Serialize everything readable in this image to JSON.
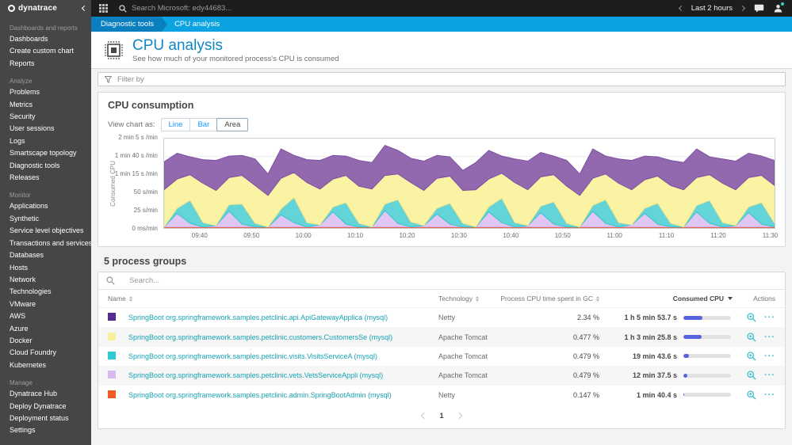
{
  "topbar": {
    "logo_text": "dynatrace",
    "search_placeholder": "Search Microsoft: edy44683...",
    "time_selector": "Last 2 hours"
  },
  "sidebar": {
    "active_item": "Diagnostic tools",
    "sections": [
      {
        "header": "Dashboards and reports",
        "items": [
          "Dashboards",
          "Create custom chart",
          "Reports"
        ]
      },
      {
        "header": "Analyze",
        "items": [
          "Problems",
          "Metrics",
          "Security",
          "User sessions",
          "Logs",
          "Smartscape topology",
          "Diagnostic tools",
          "Releases"
        ]
      },
      {
        "header": "Monitor",
        "items": [
          "Applications",
          "Synthetic",
          "Service level objectives",
          "Transactions and services",
          "Databases",
          "Hosts",
          "Network",
          "Technologies",
          "VMware",
          "AWS",
          "Azure",
          "Docker",
          "Cloud Foundry",
          "Kubernetes"
        ]
      },
      {
        "header": "Manage",
        "items": [
          "Dynatrace Hub",
          "Deploy Dynatrace",
          "Deployment status",
          "Settings"
        ]
      }
    ]
  },
  "breadcrumb": {
    "parent": "Diagnostic tools",
    "current": "CPU analysis"
  },
  "header": {
    "title": "CPU analysis",
    "subtitle": "See how much of your monitored process's CPU is consumed"
  },
  "filter": {
    "placeholder": "Filter by"
  },
  "chart_section": {
    "title": "CPU consumption",
    "view_label": "View chart as:",
    "view_options": [
      "Line",
      "Bar",
      "Area"
    ],
    "selected_view": "Area"
  },
  "chart_data": {
    "type": "area",
    "stacked": true,
    "title": "CPU consumption",
    "ylabel": "Consumed CPU",
    "unit": "s/min",
    "ylim": [
      0,
      125
    ],
    "grid": true,
    "y_ticks": [
      {
        "v": 0,
        "label": "0 ms/min"
      },
      {
        "v": 25,
        "label": "25 s/min"
      },
      {
        "v": 50,
        "label": "50 s/min"
      },
      {
        "v": 75,
        "label": "1 min 15 s /min"
      },
      {
        "v": 100,
        "label": "1 min 40 s /min"
      },
      {
        "v": 125,
        "label": "2 min 5 s /min"
      }
    ],
    "x_total_minutes": 118,
    "x_start": "09:33",
    "x_end": "11:31",
    "x_ticks": [
      {
        "m": 7,
        "label": "09:40"
      },
      {
        "m": 17,
        "label": "09:50"
      },
      {
        "m": 27,
        "label": "10:00"
      },
      {
        "m": 37,
        "label": "10:10"
      },
      {
        "m": 47,
        "label": "10:20"
      },
      {
        "m": 57,
        "label": "10:30"
      },
      {
        "m": 67,
        "label": "10:40"
      },
      {
        "m": 77,
        "label": "10:50"
      },
      {
        "m": 87,
        "label": "11:00"
      },
      {
        "m": 97,
        "label": "11:10"
      },
      {
        "m": 107,
        "label": "11:20"
      },
      {
        "m": 117,
        "label": "11:30"
      }
    ],
    "series": [
      {
        "id": "admin-springbootadmin",
        "name": "SpringBoot org.springframework.samples.petclinic.admin.SpringBootAdmin (mysql)",
        "fill": "#ef6a3f",
        "stroke": "#e55a31",
        "values": [
          1.5,
          1.5,
          1.5,
          1.5,
          1.5,
          1.5,
          1.5,
          1.5,
          1.5,
          1.5,
          1.5,
          1.5,
          1.5,
          1.5,
          1.5,
          1.5,
          1.5,
          1.5,
          1.5,
          1.5,
          1.5,
          1.5,
          1.5,
          1.5,
          1.5,
          1.5,
          1.5,
          1.5,
          1.5,
          1.5,
          1.5,
          1.5,
          1.5,
          1.5,
          1.5,
          1.5,
          1.5,
          1.5,
          1.5,
          1.5,
          1.5,
          1.5,
          1.5,
          1.5,
          1.5,
          1.5,
          1.5,
          1.5
        ]
      },
      {
        "id": "vets-vetsservice",
        "name": "SpringBoot org.springframework.samples.petclinic.vets.VetsServiceAppli (mysql)",
        "fill": "#e0c6f2",
        "stroke": "#cda9e8",
        "values": [
          0,
          19,
          5,
          0,
          2,
          22,
          4,
          0,
          0,
          17,
          6,
          0,
          3,
          21,
          4,
          0,
          0,
          23,
          5,
          0,
          2,
          18,
          4,
          0,
          0,
          21,
          6,
          0,
          2,
          20,
          4,
          0,
          0,
          22,
          5,
          0,
          3,
          19,
          4,
          0,
          0,
          21,
          5,
          0,
          2,
          20,
          4,
          0
        ]
      },
      {
        "id": "visits-visitsservice",
        "name": "SpringBoot org.springframework.samples.petclinic.visits.VisitsServiceA (mysql)",
        "fill": "#63d4d8",
        "stroke": "#35c6cd",
        "values": [
          0,
          7,
          32,
          6,
          0,
          9,
          28,
          5,
          0,
          8,
          35,
          6,
          0,
          7,
          30,
          5,
          0,
          9,
          33,
          7,
          0,
          8,
          29,
          5,
          0,
          7,
          34,
          6,
          0,
          9,
          31,
          5,
          0,
          8,
          33,
          6,
          0,
          7,
          29,
          5,
          0,
          9,
          32,
          6,
          0,
          8,
          30,
          5
        ]
      },
      {
        "id": "customers-customersservice",
        "name": "SpringBoot org.springframework.samples.petclinic.customers.CustomersSe (mysql)",
        "fill": "#faf3a4",
        "stroke": "#eee28a",
        "values": [
          52,
          41,
          36,
          55,
          49,
          38,
          40,
          53,
          44,
          43,
          35,
          56,
          50,
          39,
          38,
          52,
          53,
          40,
          36,
          55,
          49,
          42,
          38,
          46,
          52,
          39,
          35,
          56,
          50,
          41,
          38,
          52,
          44,
          38,
          36,
          55,
          49,
          40,
          38,
          53,
          52,
          39,
          36,
          55,
          50,
          41,
          38,
          53
        ]
      },
      {
        "id": "api-apigateway",
        "name": "SpringBoot org.springframework.samples.petclinic.api.ApiGatewayApplica (mysql)",
        "fill": "#9268ae",
        "stroke": "#7e51a1",
        "values": [
          39,
          36,
          25,
          33,
          42,
          30,
          28,
          37,
          30,
          41,
          24,
          32,
          40,
          33,
          27,
          36,
          37,
          42,
          33,
          34,
          41,
          32,
          27,
          28,
          38,
          40,
          24,
          33,
          40,
          34,
          26,
          36,
          30,
          41,
          25,
          34,
          41,
          33,
          27,
          35,
          38,
          40,
          25,
          34,
          40,
          34,
          27,
          35
        ]
      }
    ]
  },
  "table_section": {
    "title": "5 process groups",
    "search_placeholder": "Search...",
    "columns": [
      "Name",
      "Technology",
      "Process CPU time spent in GC",
      "Consumed CPU",
      "Actions"
    ],
    "sorted_column": "Consumed CPU",
    "sort_direction": "desc",
    "rows": [
      {
        "color": "#542c91",
        "name": "SpringBoot org.springframework.samples.petclinic.api.ApiGatewayApplica (mysql)",
        "technology": "Netty",
        "gc": "2.34 %",
        "consumed": "1 h 5 min 53.7 s",
        "bar_pct": 40
      },
      {
        "color": "#f7ef9b",
        "name": "SpringBoot org.springframework.samples.petclinic.customers.CustomersSe (mysql)",
        "technology": "Apache Tomcat",
        "gc": "0.477 %",
        "consumed": "1 h 3 min 25.8 s",
        "bar_pct": 39
      },
      {
        "color": "#2ecbd2",
        "name": "SpringBoot org.springframework.samples.petclinic.visits.VisitsServiceA (mysql)",
        "technology": "Apache Tomcat",
        "gc": "0.479 %",
        "consumed": "19 min 43.6 s",
        "bar_pct": 12
      },
      {
        "color": "#d9b8ef",
        "name": "SpringBoot org.springframework.samples.petclinic.vets.VetsServiceAppli (mysql)",
        "technology": "Apache Tomcat",
        "gc": "0.479 %",
        "consumed": "12 min 37.5 s",
        "bar_pct": 8
      },
      {
        "color": "#f05c23",
        "name": "SpringBoot org.springframework.samples.petclinic.admin.SpringBootAdmin (mysql)",
        "technology": "Netty",
        "gc": "0.147 %",
        "consumed": "1 min 40.4 s",
        "bar_pct": 1.5
      }
    ],
    "pagination": {
      "current": "1"
    }
  },
  "colors": {
    "topbar_bg": "#1d1d1d",
    "sidebar_bg": "#454646",
    "breadcrumb_bg": "#0ba3e1",
    "breadcrumb_chip_bg": "#0a7fc0",
    "title_blue": "#0d87c6",
    "link_teal": "#16a2b3",
    "action_teal": "#3dbecd",
    "bar_fill": "#5465dd"
  }
}
